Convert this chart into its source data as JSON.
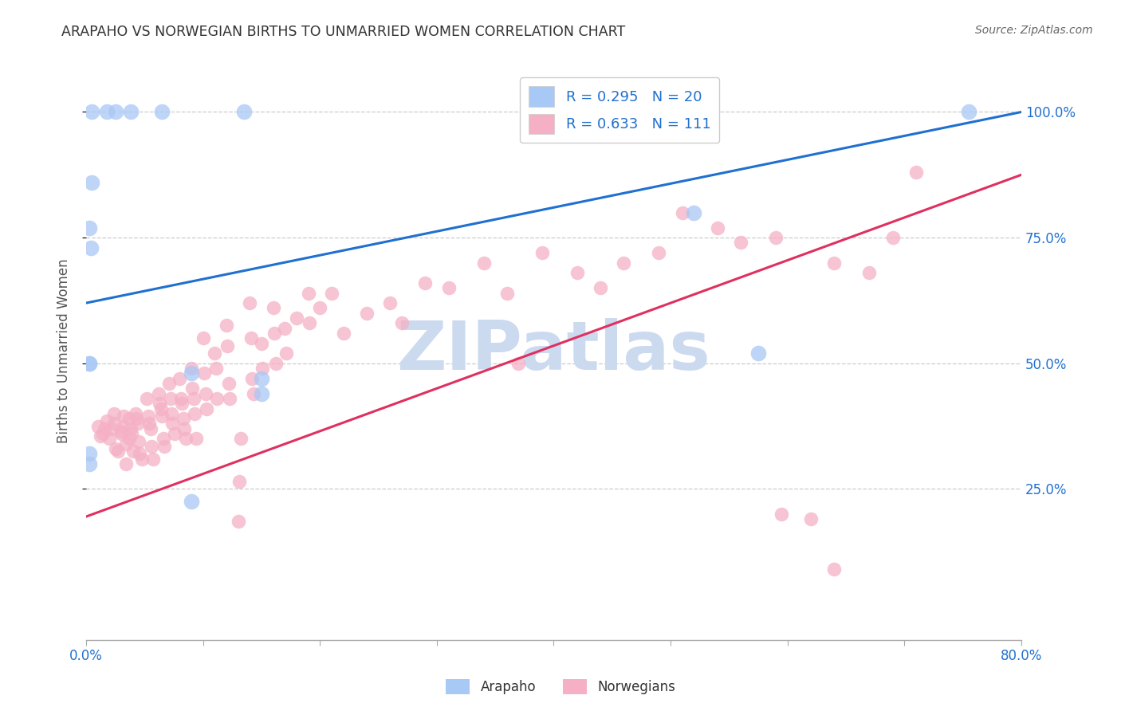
{
  "title": "ARAPAHO VS NORWEGIAN BIRTHS TO UNMARRIED WOMEN CORRELATION CHART",
  "source": "Source: ZipAtlas.com",
  "ylabel": "Births to Unmarried Women",
  "ytick_labels": [
    "25.0%",
    "50.0%",
    "75.0%",
    "100.0%"
  ],
  "ytick_values": [
    0.25,
    0.5,
    0.75,
    1.0
  ],
  "xlim": [
    0.0,
    0.8
  ],
  "ylim": [
    -0.05,
    1.1
  ],
  "background_color": "#ffffff",
  "watermark_text": "ZIPatlas",
  "watermark_color": "#ccdaf0",
  "legend_label1": "R = 0.295   N = 20",
  "legend_label2": "R = 0.633   N = 111",
  "legend_color1": "#a8c8f5",
  "legend_color2": "#f5b0c5",
  "line_color1": "#2070d0",
  "line_color2": "#e03060",
  "text_color_blue": "#2070d0",
  "title_color": "#333333",
  "source_color": "#666666",
  "arapaho_scatter": [
    [
      0.005,
      1.0
    ],
    [
      0.018,
      1.0
    ],
    [
      0.025,
      1.0
    ],
    [
      0.038,
      1.0
    ],
    [
      0.065,
      1.0
    ],
    [
      0.135,
      1.0
    ],
    [
      0.005,
      0.86
    ],
    [
      0.003,
      0.77
    ],
    [
      0.004,
      0.73
    ],
    [
      0.003,
      0.5
    ],
    [
      0.003,
      0.5
    ],
    [
      0.09,
      0.48
    ],
    [
      0.15,
      0.47
    ],
    [
      0.15,
      0.44
    ],
    [
      0.003,
      0.32
    ],
    [
      0.003,
      0.3
    ],
    [
      0.09,
      0.225
    ],
    [
      0.52,
      0.8
    ],
    [
      0.575,
      0.52
    ],
    [
      0.755,
      1.0
    ]
  ],
  "norwegians_scatter": [
    [
      0.01,
      0.375
    ],
    [
      0.012,
      0.355
    ],
    [
      0.014,
      0.36
    ],
    [
      0.016,
      0.37
    ],
    [
      0.018,
      0.385
    ],
    [
      0.02,
      0.35
    ],
    [
      0.022,
      0.37
    ],
    [
      0.024,
      0.38
    ],
    [
      0.024,
      0.4
    ],
    [
      0.025,
      0.33
    ],
    [
      0.027,
      0.325
    ],
    [
      0.03,
      0.365
    ],
    [
      0.03,
      0.36
    ],
    [
      0.032,
      0.375
    ],
    [
      0.032,
      0.395
    ],
    [
      0.034,
      0.34
    ],
    [
      0.034,
      0.3
    ],
    [
      0.037,
      0.39
    ],
    [
      0.037,
      0.35
    ],
    [
      0.038,
      0.37
    ],
    [
      0.039,
      0.36
    ],
    [
      0.04,
      0.325
    ],
    [
      0.042,
      0.4
    ],
    [
      0.043,
      0.39
    ],
    [
      0.044,
      0.38
    ],
    [
      0.045,
      0.345
    ],
    [
      0.046,
      0.32
    ],
    [
      0.048,
      0.31
    ],
    [
      0.052,
      0.43
    ],
    [
      0.053,
      0.395
    ],
    [
      0.054,
      0.38
    ],
    [
      0.055,
      0.37
    ],
    [
      0.056,
      0.335
    ],
    [
      0.057,
      0.31
    ],
    [
      0.062,
      0.44
    ],
    [
      0.063,
      0.42
    ],
    [
      0.064,
      0.41
    ],
    [
      0.065,
      0.395
    ],
    [
      0.066,
      0.35
    ],
    [
      0.067,
      0.335
    ],
    [
      0.071,
      0.46
    ],
    [
      0.072,
      0.43
    ],
    [
      0.073,
      0.4
    ],
    [
      0.074,
      0.38
    ],
    [
      0.076,
      0.36
    ],
    [
      0.08,
      0.47
    ],
    [
      0.081,
      0.43
    ],
    [
      0.082,
      0.42
    ],
    [
      0.083,
      0.39
    ],
    [
      0.084,
      0.37
    ],
    [
      0.085,
      0.35
    ],
    [
      0.09,
      0.49
    ],
    [
      0.091,
      0.45
    ],
    [
      0.092,
      0.43
    ],
    [
      0.093,
      0.4
    ],
    [
      0.094,
      0.35
    ],
    [
      0.1,
      0.55
    ],
    [
      0.101,
      0.48
    ],
    [
      0.102,
      0.44
    ],
    [
      0.103,
      0.41
    ],
    [
      0.11,
      0.52
    ],
    [
      0.111,
      0.49
    ],
    [
      0.112,
      0.43
    ],
    [
      0.12,
      0.575
    ],
    [
      0.121,
      0.535
    ],
    [
      0.122,
      0.46
    ],
    [
      0.123,
      0.43
    ],
    [
      0.13,
      0.185
    ],
    [
      0.131,
      0.265
    ],
    [
      0.132,
      0.35
    ],
    [
      0.14,
      0.62
    ],
    [
      0.141,
      0.55
    ],
    [
      0.142,
      0.47
    ],
    [
      0.143,
      0.44
    ],
    [
      0.15,
      0.54
    ],
    [
      0.151,
      0.49
    ],
    [
      0.16,
      0.61
    ],
    [
      0.161,
      0.56
    ],
    [
      0.162,
      0.5
    ],
    [
      0.17,
      0.57
    ],
    [
      0.171,
      0.52
    ],
    [
      0.18,
      0.59
    ],
    [
      0.19,
      0.64
    ],
    [
      0.191,
      0.58
    ],
    [
      0.2,
      0.61
    ],
    [
      0.21,
      0.64
    ],
    [
      0.22,
      0.56
    ],
    [
      0.24,
      0.6
    ],
    [
      0.26,
      0.62
    ],
    [
      0.27,
      0.58
    ],
    [
      0.29,
      0.66
    ],
    [
      0.31,
      0.65
    ],
    [
      0.34,
      0.7
    ],
    [
      0.36,
      0.64
    ],
    [
      0.37,
      0.5
    ],
    [
      0.39,
      0.72
    ],
    [
      0.42,
      0.68
    ],
    [
      0.44,
      0.65
    ],
    [
      0.46,
      0.7
    ],
    [
      0.49,
      0.72
    ],
    [
      0.51,
      0.8
    ],
    [
      0.54,
      0.77
    ],
    [
      0.56,
      0.74
    ],
    [
      0.59,
      0.75
    ],
    [
      0.595,
      0.2
    ],
    [
      0.62,
      0.19
    ],
    [
      0.64,
      0.7
    ],
    [
      0.67,
      0.68
    ],
    [
      0.64,
      0.09
    ],
    [
      0.69,
      0.75
    ],
    [
      0.71,
      0.88
    ]
  ],
  "arapaho_line_x": [
    0.0,
    0.8
  ],
  "arapaho_line_y": [
    0.62,
    1.0
  ],
  "norwegian_line_x": [
    0.0,
    0.8
  ],
  "norwegian_line_y": [
    0.195,
    0.875
  ],
  "scatter_size_arapaho": 200,
  "scatter_size_norwegian": 160,
  "scatter_alpha": 0.75,
  "grid_color": "#cccccc",
  "spine_color": "#aaaaaa",
  "xtick_positions": [
    0.0,
    0.1,
    0.2,
    0.3,
    0.4,
    0.5,
    0.6,
    0.7,
    0.8
  ]
}
